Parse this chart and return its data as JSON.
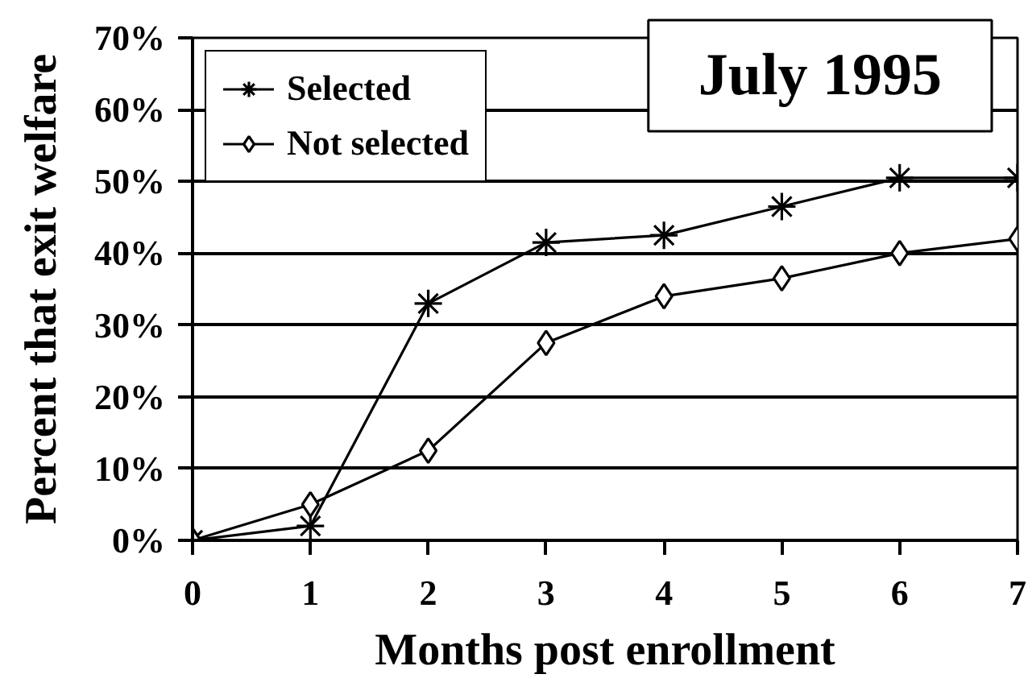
{
  "chart_data": {
    "type": "line",
    "title": "July 1995",
    "xlabel": "Months post enrollment",
    "ylabel": "Percent that exit welfare",
    "x": [
      0,
      1,
      2,
      3,
      4,
      5,
      6,
      7
    ],
    "series": [
      {
        "name": "Selected",
        "color": "#000000",
        "marker": "cross",
        "values": [
          0,
          2,
          33,
          41.5,
          42.5,
          46.5,
          50.5,
          50.5
        ]
      },
      {
        "name": "Not selected",
        "color": "#000000",
        "marker": "diamond",
        "values": [
          0,
          5,
          12.5,
          27.5,
          34,
          36.5,
          40,
          42
        ]
      }
    ],
    "xlim": [
      0,
      7
    ],
    "ylim": [
      0,
      70
    ],
    "xticks": [
      0,
      1,
      2,
      3,
      4,
      5,
      6,
      7
    ],
    "yticks": [
      {
        "value": 0,
        "label": "0%"
      },
      {
        "value": 10,
        "label": "10%"
      },
      {
        "value": 20,
        "label": "20%"
      },
      {
        "value": 30,
        "label": "30%"
      },
      {
        "value": 40,
        "label": "40%"
      },
      {
        "value": 50,
        "label": "50%"
      },
      {
        "value": 60,
        "label": "60%"
      },
      {
        "value": 70,
        "label": "70%"
      }
    ],
    "grid": "y",
    "legend": "top left",
    "line_style": "solid"
  }
}
